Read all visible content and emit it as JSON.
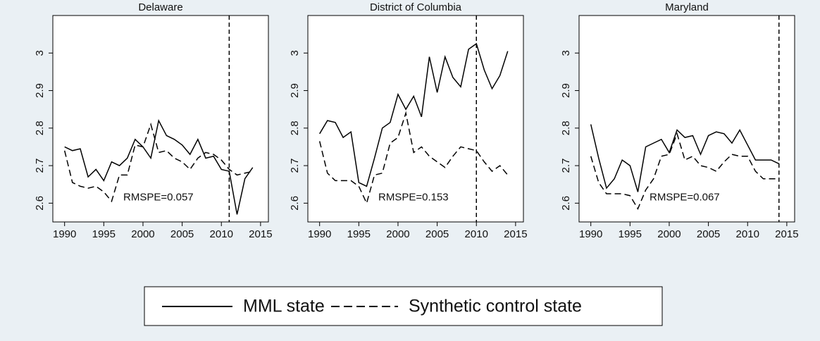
{
  "chart_data": [
    {
      "type": "line",
      "title": "Delaware",
      "annotation": "RMSPE=0.057",
      "vline": 2011,
      "x": [
        1990,
        1991,
        1992,
        1993,
        1994,
        1995,
        1996,
        1997,
        1998,
        1999,
        2000,
        2001,
        2002,
        2003,
        2004,
        2005,
        2006,
        2007,
        2008,
        2009,
        2010,
        2011,
        2012,
        2013,
        2014
      ],
      "series": [
        {
          "name": "MML state",
          "color": "#000000",
          "dashed": false,
          "values": [
            2.75,
            2.74,
            2.745,
            2.67,
            2.69,
            2.66,
            2.71,
            2.7,
            2.72,
            2.77,
            2.75,
            2.72,
            2.82,
            2.78,
            2.77,
            2.755,
            2.73,
            2.77,
            2.72,
            2.725,
            2.69,
            2.685,
            2.57,
            2.665,
            2.695
          ]
        },
        {
          "name": "Synthetic control state",
          "color": "#000000",
          "dashed": true,
          "values": [
            2.74,
            2.655,
            2.645,
            2.64,
            2.645,
            2.63,
            2.605,
            2.675,
            2.675,
            2.755,
            2.75,
            2.81,
            2.735,
            2.74,
            2.72,
            2.71,
            2.69,
            2.72,
            2.735,
            2.73,
            2.715,
            2.69,
            2.675,
            2.68,
            2.685
          ]
        }
      ],
      "xlim": [
        1988.5,
        2016
      ],
      "ylim": [
        2.55,
        3.1
      ],
      "xticks": [
        1990,
        1995,
        2000,
        2005,
        2010,
        2015
      ],
      "yticks": [
        2.6,
        2.7,
        2.8,
        2.9,
        3
      ]
    },
    {
      "type": "line",
      "title": "District of Columbia",
      "annotation": "RMSPE=0.153",
      "vline": 2010,
      "x": [
        1990,
        1991,
        1992,
        1993,
        1994,
        1995,
        1996,
        1997,
        1998,
        1999,
        2000,
        2001,
        2002,
        2003,
        2004,
        2005,
        2006,
        2007,
        2008,
        2009,
        2010,
        2011,
        2012,
        2013,
        2014
      ],
      "series": [
        {
          "color": "#000000",
          "dashed": false,
          "values": [
            2.785,
            2.82,
            2.815,
            2.775,
            2.79,
            2.655,
            2.645,
            2.72,
            2.8,
            2.815,
            2.89,
            2.85,
            2.885,
            2.83,
            2.99,
            2.895,
            2.99,
            2.935,
            2.91,
            3.01,
            3.025,
            2.955,
            2.905,
            2.94,
            3.005
          ]
        },
        {
          "color": "#000000",
          "dashed": true,
          "values": [
            2.765,
            2.68,
            2.66,
            2.66,
            2.66,
            2.645,
            2.6,
            2.675,
            2.68,
            2.76,
            2.775,
            2.84,
            2.735,
            2.75,
            2.725,
            2.71,
            2.695,
            2.725,
            2.75,
            2.745,
            2.74,
            2.71,
            2.685,
            2.7,
            2.675
          ]
        }
      ],
      "xlim": [
        1988.5,
        2016
      ],
      "ylim": [
        2.55,
        3.1
      ],
      "xticks": [
        1990,
        1995,
        2000,
        2005,
        2010,
        2015
      ],
      "yticks": [
        2.6,
        2.7,
        2.8,
        2.9,
        3
      ]
    },
    {
      "type": "line",
      "title": "Maryland",
      "annotation": "RMSPE=0.067",
      "vline": 2014,
      "x": [
        1990,
        1991,
        1992,
        1993,
        1994,
        1995,
        1996,
        1997,
        1998,
        1999,
        2000,
        2001,
        2002,
        2003,
        2004,
        2005,
        2006,
        2007,
        2008,
        2009,
        2010,
        2011,
        2012,
        2013,
        2014
      ],
      "series": [
        {
          "color": "#000000",
          "dashed": false,
          "values": [
            2.81,
            2.72,
            2.64,
            2.665,
            2.715,
            2.7,
            2.63,
            2.75,
            2.76,
            2.77,
            2.735,
            2.795,
            2.775,
            2.78,
            2.73,
            2.78,
            2.79,
            2.785,
            2.76,
            2.795,
            2.755,
            2.715,
            2.715,
            2.715,
            2.705
          ]
        },
        {
          "color": "#000000",
          "dashed": true,
          "values": [
            2.725,
            2.655,
            2.625,
            2.625,
            2.625,
            2.62,
            2.585,
            2.635,
            2.665,
            2.725,
            2.73,
            2.785,
            2.715,
            2.725,
            2.7,
            2.695,
            2.685,
            2.71,
            2.73,
            2.725,
            2.725,
            2.685,
            2.665,
            2.665,
            2.665
          ]
        }
      ],
      "xlim": [
        1988.5,
        2016
      ],
      "ylim": [
        2.55,
        3.1
      ],
      "xticks": [
        1990,
        1995,
        2000,
        2005,
        2010,
        2015
      ],
      "yticks": [
        2.6,
        2.7,
        2.8,
        2.9,
        3
      ]
    }
  ]
}
